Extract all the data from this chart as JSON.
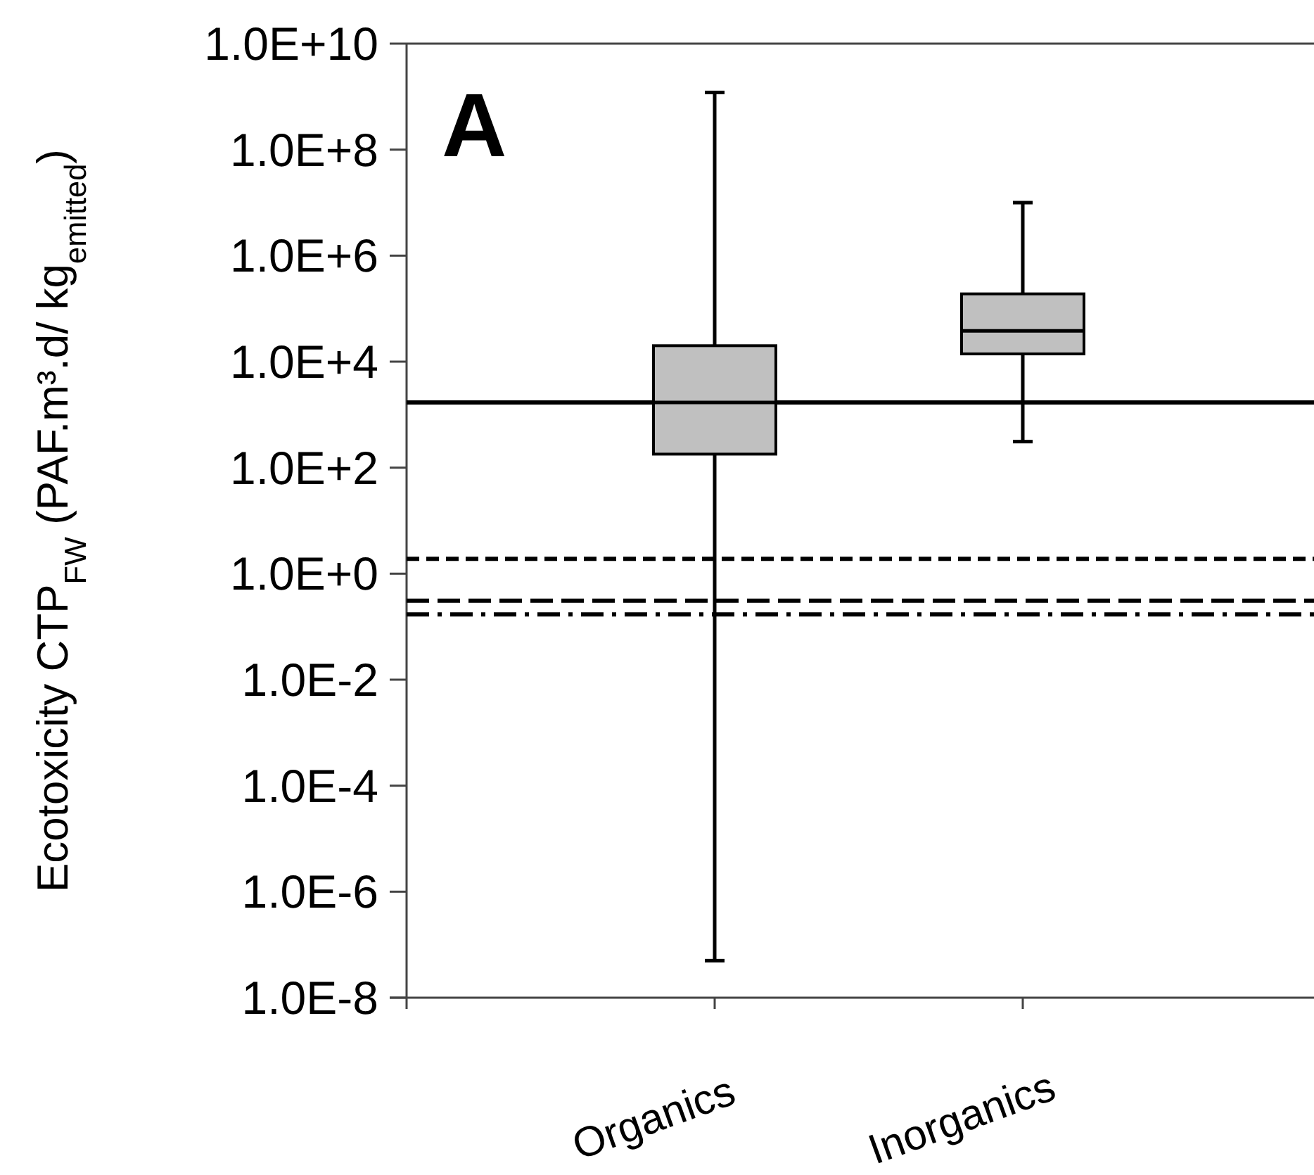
{
  "chart_data": {
    "type": "box",
    "ylabel": "Ecotoxicity CTP$_{FW}$  (PAF.m³.d/ kg$_{emitted}$)",
    "annotations": [
      "A"
    ],
    "categories": [
      "Organics",
      "Inorganics"
    ],
    "color": "#c0c0c0",
    "boxes": [
      {
        "low": 5e-08,
        "q1": 180,
        "median": 1700,
        "q3": 20000,
        "high": 1200000000.0
      },
      {
        "low": 310,
        "q1": 14000,
        "median": 38000,
        "q3": 190000,
        "high": 10000000.0
      }
    ],
    "log": true,
    "ylim": [
      1e-08,
      10000000000.0
    ],
    "yticks": [
      {
        "value": 10000000000.0,
        "label": "1.0E+10"
      },
      {
        "value": 100000000.0,
        "label": "1.0E+8"
      },
      {
        "value": 1000000.0,
        "label": "1.0E+6"
      },
      {
        "value": 10000.0,
        "label": "1.0E+4"
      },
      {
        "value": 100,
        "label": "1.0E+2"
      },
      {
        "value": 1,
        "label": "1.0E+0"
      },
      {
        "value": 0.01,
        "label": "1.0E-2"
      },
      {
        "value": 0.0001,
        "label": "1.0E-4"
      },
      {
        "value": 1e-06,
        "label": "1.0E-6"
      },
      {
        "value": 1e-08,
        "label": "1.0E-8"
      }
    ],
    "ref_lines": [
      {
        "axis": "y",
        "value": 1700,
        "color": "#000000",
        "line_style": "solid"
      },
      {
        "axis": "y",
        "value": 1.9,
        "color": "#000000",
        "line_style": "dashed"
      },
      {
        "axis": "y",
        "value": 0.31,
        "color": "#000000",
        "line_style": "longdashed"
      },
      {
        "axis": "y",
        "value": 0.17,
        "color": "#000000",
        "line_style": "dashdot"
      }
    ],
    "grid": false
  }
}
